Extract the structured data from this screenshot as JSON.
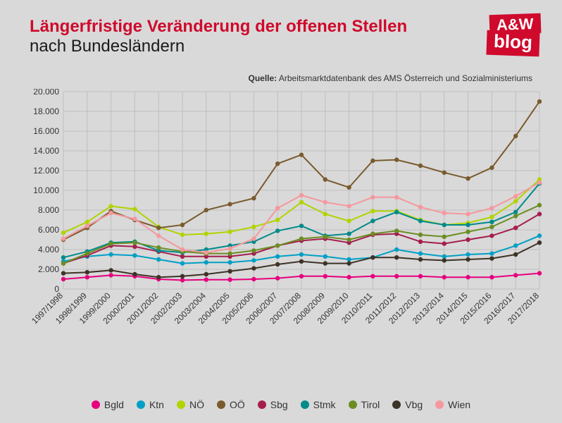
{
  "title_line1": "Längerfristige Veränderung der offenen Stellen",
  "title_line2": "nach Bundesländern",
  "logo_top": "A&W",
  "logo_bottom": "blog",
  "source_label": "Quelle:",
  "source_text": "Arbeitsmarktdatenbank des AMS Österreich und Sozialministeriums",
  "chart": {
    "type": "line",
    "ylim": [
      0,
      20000
    ],
    "ytick_step": 2000,
    "ytick_labels": [
      "0",
      "2.000",
      "4.000",
      "6.000",
      "8.000",
      "10.000",
      "12.000",
      "14.000",
      "16.000",
      "18.000",
      "20.000"
    ],
    "x_labels": [
      "1997/1998",
      "1998/1999",
      "1999/2000",
      "2000/2001",
      "2001/2002",
      "2002/2003",
      "2003/2004",
      "2004/2005",
      "2005/2006",
      "2006/2007",
      "2007/2008",
      "2008/2009",
      "2009/2010",
      "2010/2011",
      "2011/2012",
      "2012/2013",
      "2013/2014",
      "2014/2015",
      "2015/2016",
      "2016/2017",
      "2017/2018"
    ],
    "grid_color": "#bfbfbf",
    "background_color": "#d9d9d9",
    "label_fontsize": 12,
    "line_width": 2,
    "dot_radius": 3.2,
    "series": [
      {
        "name": "Bgld",
        "color": "#e6007e",
        "values": [
          1000,
          1200,
          1400,
          1300,
          1000,
          900,
          950,
          950,
          1000,
          1100,
          1300,
          1300,
          1200,
          1300,
          1300,
          1300,
          1200,
          1200,
          1200,
          1400,
          1600
        ]
      },
      {
        "name": "Ktn",
        "color": "#00a0c6",
        "values": [
          2800,
          3300,
          3500,
          3400,
          3000,
          2600,
          2700,
          2700,
          2900,
          3300,
          3500,
          3300,
          3000,
          3200,
          4000,
          3600,
          3300,
          3500,
          3600,
          4400,
          5400
        ]
      },
      {
        "name": "NÖ",
        "color": "#b0d400",
        "values": [
          5700,
          6800,
          8400,
          8100,
          6300,
          5500,
          5600,
          5800,
          6300,
          7000,
          8800,
          7600,
          6900,
          7900,
          7900,
          7000,
          6500,
          6700,
          7300,
          8900,
          11100
        ]
      },
      {
        "name": "OÖ",
        "color": "#7a5b2e",
        "values": [
          5000,
          6200,
          7900,
          7000,
          6200,
          6500,
          8000,
          8600,
          9200,
          12700,
          13600,
          11100,
          10300,
          13000,
          13100,
          12500,
          11800,
          11200,
          12300,
          15500,
          19000
        ]
      },
      {
        "name": "Sbg",
        "color": "#a41e4d",
        "values": [
          2600,
          3400,
          4400,
          4300,
          3800,
          3300,
          3300,
          3300,
          3600,
          4400,
          4900,
          5100,
          4700,
          5500,
          5600,
          4800,
          4600,
          5000,
          5400,
          6200,
          7600
        ]
      },
      {
        "name": "Stmk",
        "color": "#008b8b",
        "values": [
          3200,
          3800,
          4700,
          4800,
          3900,
          3700,
          4000,
          4400,
          4800,
          5900,
          6400,
          5400,
          5600,
          6900,
          7800,
          6900,
          6500,
          6500,
          6800,
          7800,
          10700
        ]
      },
      {
        "name": "Tirol",
        "color": "#6b8e23",
        "values": [
          2600,
          3600,
          4600,
          4700,
          4200,
          3800,
          3600,
          3600,
          3900,
          4400,
          5100,
          5300,
          5000,
          5600,
          5900,
          5500,
          5300,
          5800,
          6300,
          7400,
          8500
        ]
      },
      {
        "name": "Vbg",
        "color": "#3d3326",
        "values": [
          1600,
          1700,
          1900,
          1500,
          1200,
          1300,
          1500,
          1800,
          2100,
          2500,
          2800,
          2600,
          2600,
          3200,
          3200,
          3000,
          2900,
          3000,
          3100,
          3500,
          4700
        ]
      },
      {
        "name": "Wien",
        "color": "#f5989d",
        "values": [
          5100,
          6400,
          7700,
          7100,
          5400,
          4000,
          3700,
          4100,
          5100,
          8200,
          9500,
          8800,
          8400,
          9300,
          9300,
          8300,
          7700,
          7600,
          8200,
          9400,
          10800
        ]
      }
    ]
  }
}
